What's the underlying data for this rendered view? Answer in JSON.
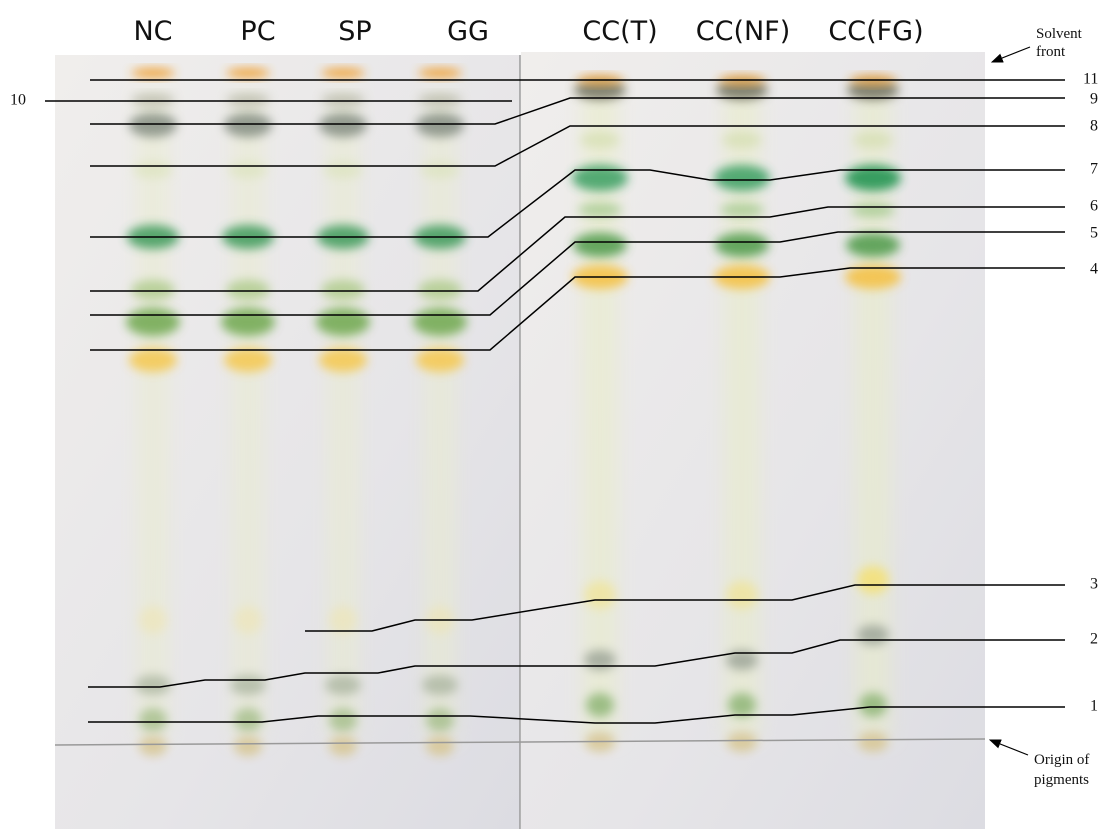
{
  "lanes": [
    "NC",
    "PC",
    "SP",
    "GG",
    "CC(T)",
    "CC(NF)",
    "CC(FG)"
  ],
  "band_labels": [
    "1",
    "2",
    "3",
    "4",
    "5",
    "6",
    "7",
    "8",
    "9",
    "10",
    "11"
  ],
  "solvent_front": [
    "Solvent",
    "front"
  ],
  "origin": [
    "Origin of",
    "pigments"
  ]
}
